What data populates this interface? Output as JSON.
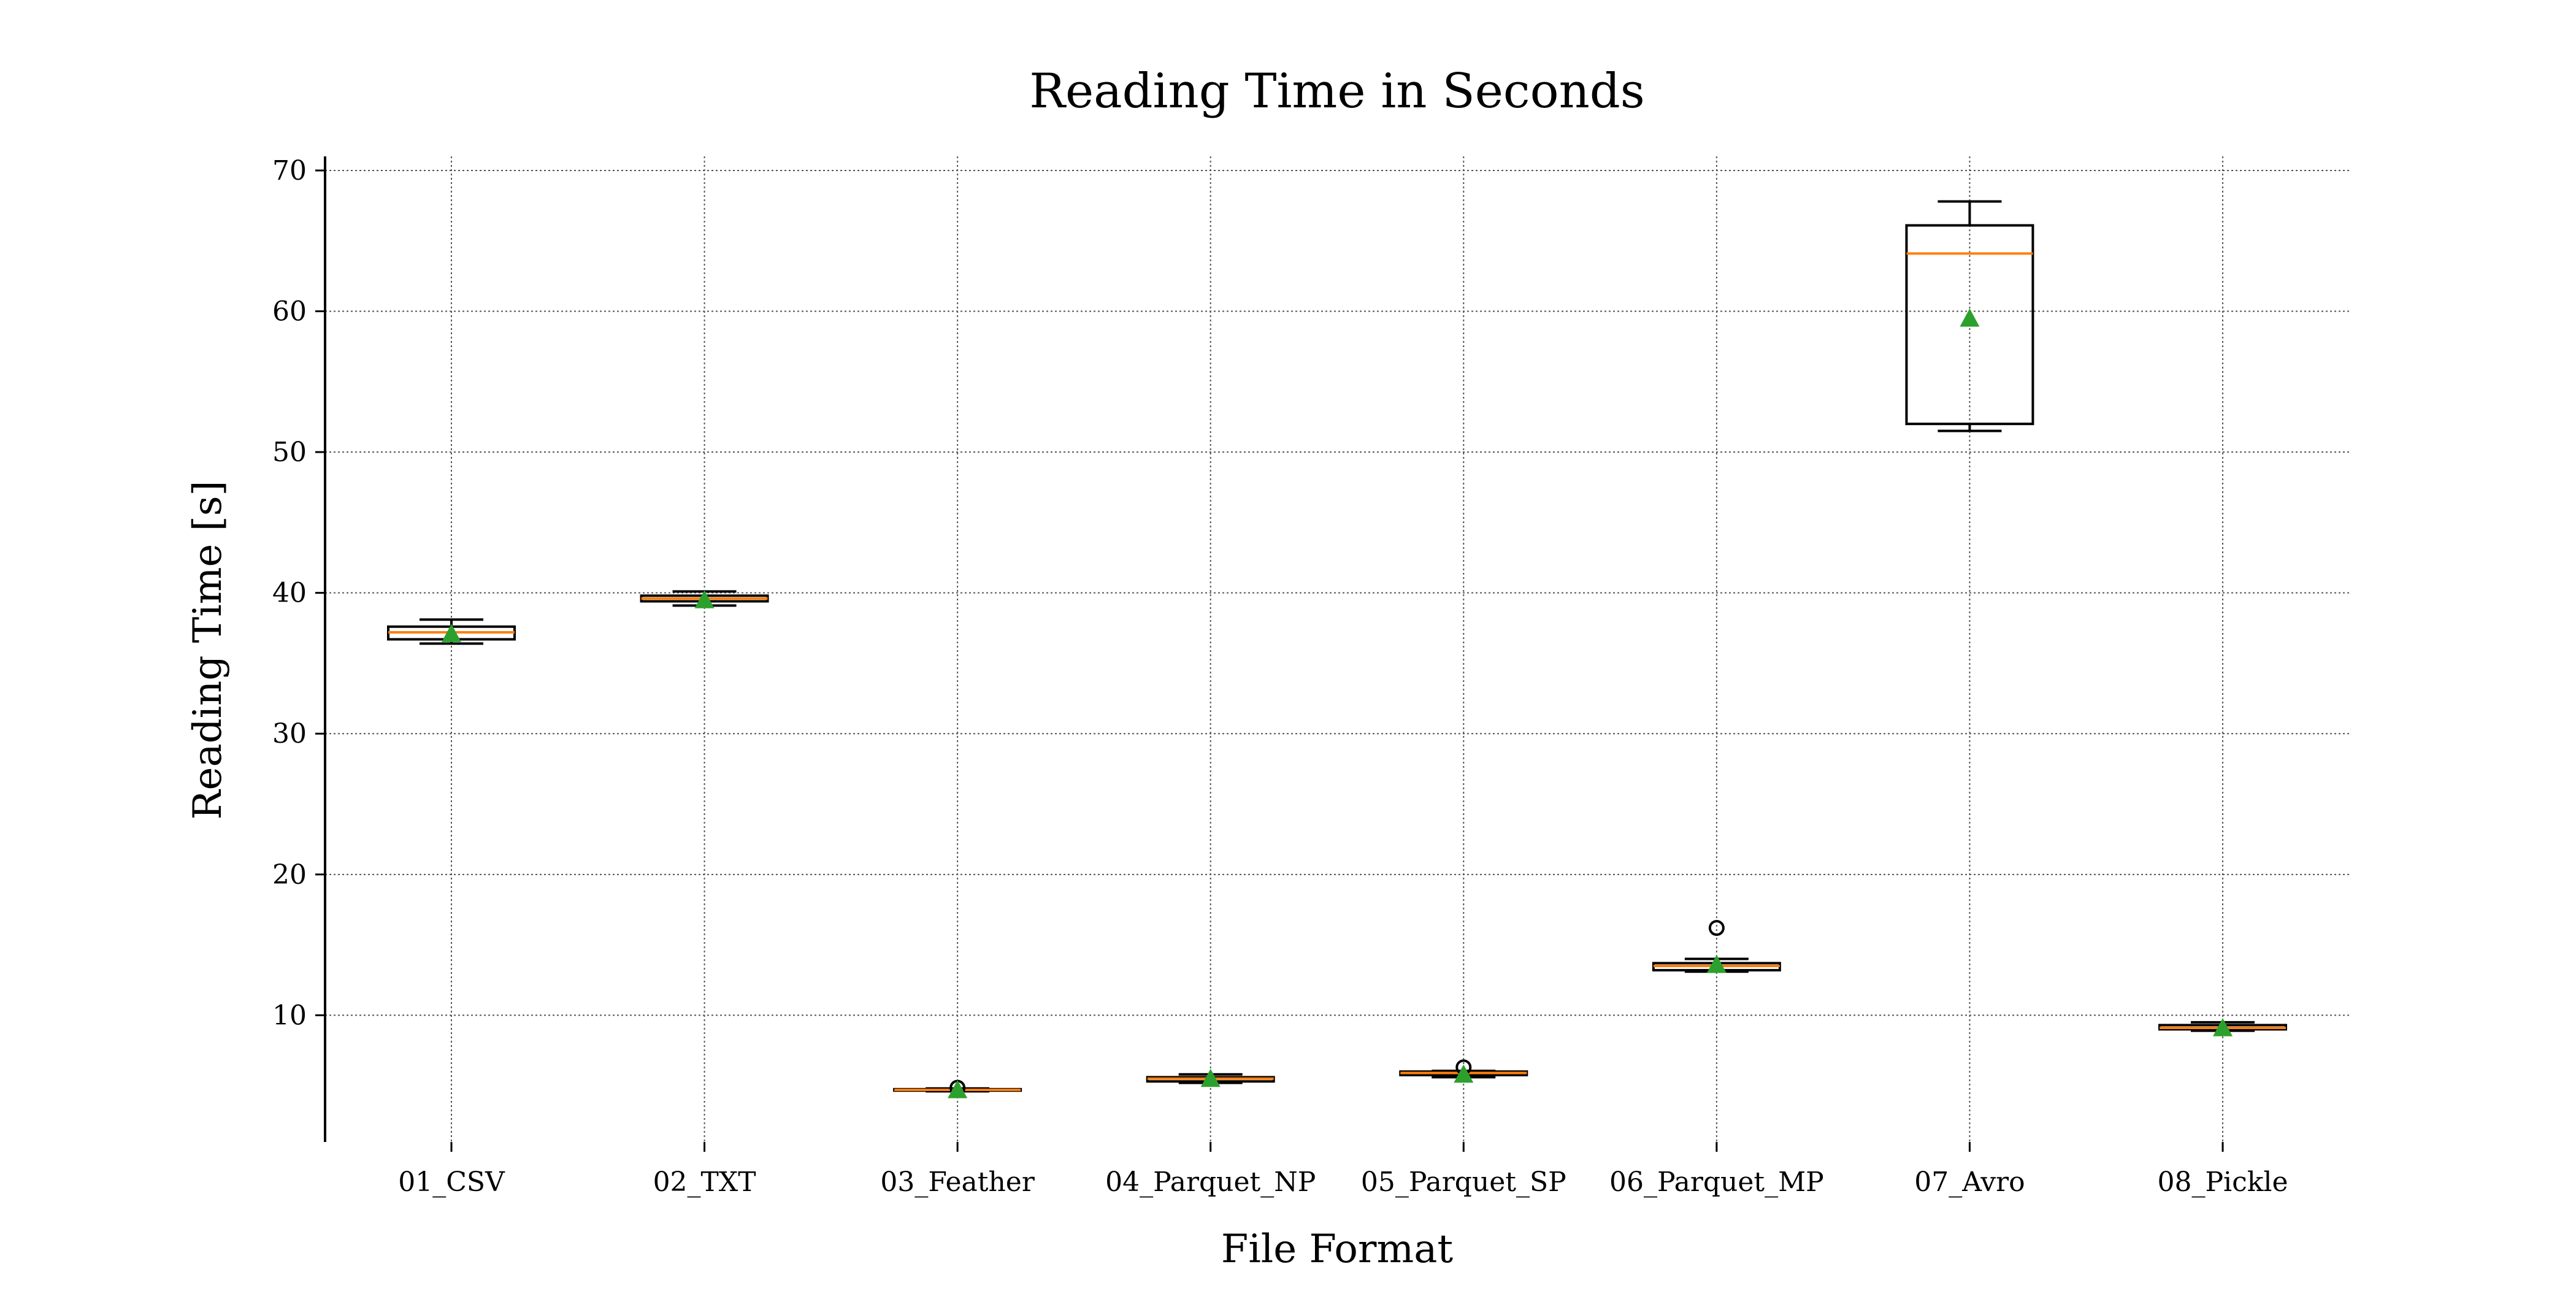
{
  "chart_data": {
    "type": "box",
    "title": "Reading Time in Seconds",
    "xlabel": "File Format",
    "ylabel": "Reading Time [s]",
    "ylim": [
      1,
      71
    ],
    "yticks": [
      10,
      20,
      30,
      40,
      50,
      60,
      70
    ],
    "grid": true,
    "categories": [
      "01_CSV",
      "02_TXT",
      "03_Feather",
      "04_Parquet_NP",
      "05_Parquet_SP",
      "06_Parquet_MP",
      "07_Avro",
      "08_Pickle"
    ],
    "boxes": [
      {
        "whisker_low": 36.4,
        "q1": 36.7,
        "median": 37.2,
        "q3": 37.6,
        "whisker_high": 38.1,
        "mean": 37.1,
        "outliers": []
      },
      {
        "whisker_low": 39.1,
        "q1": 39.4,
        "median": 39.6,
        "q3": 39.8,
        "whisker_high": 40.1,
        "mean": 39.5,
        "outliers": []
      },
      {
        "whisker_low": 4.6,
        "q1": 4.65,
        "median": 4.7,
        "q3": 4.75,
        "whisker_high": 4.8,
        "mean": 4.7,
        "outliers": [
          4.85
        ]
      },
      {
        "whisker_low": 5.2,
        "q1": 5.3,
        "median": 5.5,
        "q3": 5.6,
        "whisker_high": 5.8,
        "mean": 5.5,
        "outliers": []
      },
      {
        "whisker_low": 5.6,
        "q1": 5.75,
        "median": 5.9,
        "q3": 6.0,
        "whisker_high": 6.05,
        "mean": 5.8,
        "outliers": [
          6.3
        ]
      },
      {
        "whisker_low": 13.1,
        "q1": 13.2,
        "median": 13.5,
        "q3": 13.7,
        "whisker_high": 14.0,
        "mean": 13.6,
        "outliers": [
          16.2
        ]
      },
      {
        "whisker_low": 51.5,
        "q1": 52.0,
        "median": 64.1,
        "q3": 66.1,
        "whisker_high": 67.8,
        "mean": 59.5,
        "outliers": []
      },
      {
        "whisker_low": 8.9,
        "q1": 9.0,
        "median": 9.1,
        "q3": 9.3,
        "whisker_high": 9.5,
        "mean": 9.1,
        "outliers": []
      }
    ],
    "colors": {
      "box": "#000000",
      "median": "#ff7f0e",
      "mean": "#2ca02c",
      "grid": "#555555"
    }
  }
}
